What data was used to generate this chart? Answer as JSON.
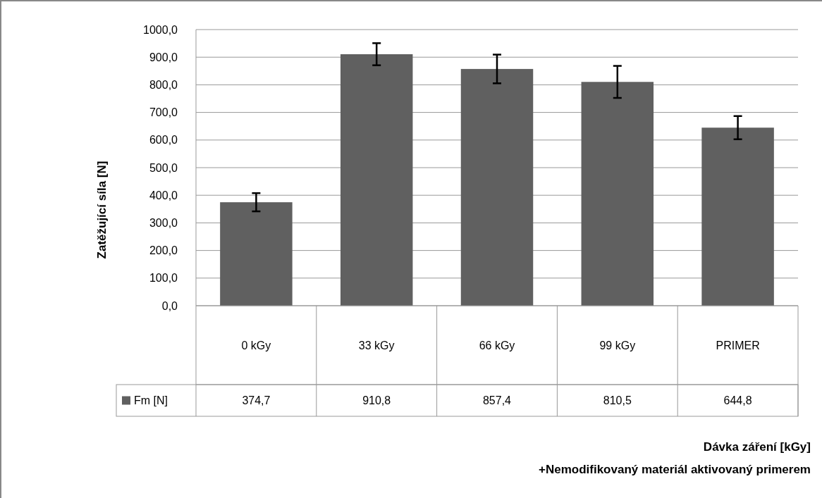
{
  "chart_data": {
    "type": "bar",
    "categories": [
      "0 kGy",
      "33 kGy",
      "66 kGy",
      "99 kGy",
      "PRIMER"
    ],
    "series": [
      {
        "name": "Fm [N]",
        "color": "#606060",
        "values": [
          374.7,
          910.8,
          857.4,
          810.5,
          644.8
        ],
        "errors": [
          33,
          40,
          52,
          58,
          42
        ]
      }
    ],
    "ylim": [
      0,
      1000
    ],
    "yticks": [
      {
        "value": 0,
        "label": "0,0"
      },
      {
        "value": 100,
        "label": "100,0"
      },
      {
        "value": 200,
        "label": "200,0"
      },
      {
        "value": 300,
        "label": "300,0"
      },
      {
        "value": 400,
        "label": "400,0"
      },
      {
        "value": 500,
        "label": "500,0"
      },
      {
        "value": 600,
        "label": "600,0"
      },
      {
        "value": 700,
        "label": "700,0"
      },
      {
        "value": 800,
        "label": "800,0"
      },
      {
        "value": 900,
        "label": "900,0"
      },
      {
        "value": 1000,
        "label": "1000,0"
      }
    ],
    "ylabel": "Zatěžující síla [N]",
    "annotations": [
      "Dávka záření [kGy]",
      "+Nemodifikovaný materiál aktivovaný primerem"
    ],
    "grid": "y",
    "legend": "bottom",
    "value_labels": [
      "374,7",
      "910,8",
      "857,4",
      "810,5",
      "644,8"
    ]
  }
}
